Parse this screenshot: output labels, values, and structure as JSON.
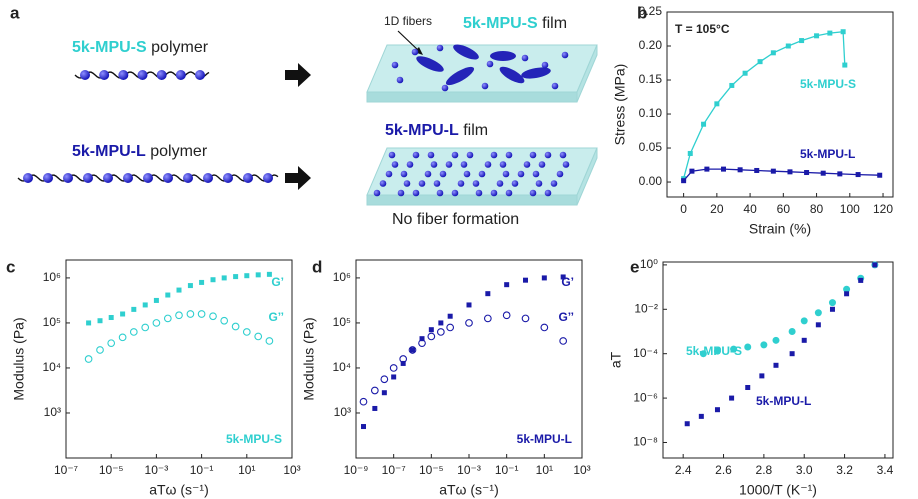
{
  "schematic": {
    "panel": "a",
    "top_polymer": {
      "name": "5k-MPU-S",
      "suffix": "polymer"
    },
    "bottom_polymer": {
      "name": "5k-MPU-L",
      "suffix": "polymer"
    },
    "top_film": {
      "name": "5k-MPU-S",
      "suffix": "film",
      "callout": "1D fibers"
    },
    "bottom_film": {
      "name": "5k-MPU-L",
      "suffix": "film",
      "caption": "No fiber formation"
    }
  },
  "chart_data": [
    {
      "type": "line",
      "panel": "b",
      "annotation": "T = 105°C",
      "xlabel": "Strain (%)",
      "ylabel": "Stress (MPa)",
      "xlim": [
        -10,
        126
      ],
      "ylim": [
        -0.022,
        0.25
      ],
      "xticks": [
        0,
        20,
        40,
        60,
        80,
        100,
        120
      ],
      "yticks": [
        {
          "value": 0,
          "label": "0.00"
        },
        0.05,
        {
          "value": 0.1,
          "label": "0.10"
        },
        0.15,
        {
          "value": 0.2,
          "label": "0.20"
        },
        0.25
      ],
      "series": [
        {
          "name": "5k-MPU-S",
          "color": "#2fcfcf",
          "marker": "square",
          "x": [
            0,
            4,
            12,
            20,
            29,
            37,
            46,
            54,
            63,
            71,
            80,
            88,
            96,
            97
          ],
          "values": [
            0.005,
            0.042,
            0.085,
            0.115,
            0.142,
            0.16,
            0.177,
            0.19,
            0.2,
            0.208,
            0.215,
            0.219,
            0.221,
            0.172
          ]
        },
        {
          "name": "5k-MPU-L",
          "color": "#1a1aa8",
          "marker": "square",
          "x": [
            0,
            5,
            14,
            24,
            34,
            44,
            54,
            64,
            74,
            84,
            94,
            105,
            118
          ],
          "values": [
            0.002,
            0.016,
            0.019,
            0.019,
            0.018,
            0.017,
            0.016,
            0.015,
            0.014,
            0.013,
            0.012,
            0.011,
            0.01
          ]
        }
      ]
    },
    {
      "type": "scatter",
      "panel": "c",
      "annotation": "5k-MPU-S",
      "annotation_color": "#2fcfcf",
      "xlabel": "aTω (s⁻¹)",
      "ylabel": "Modulus (Pa)",
      "xscale": "log",
      "yscale": "log",
      "xlim": [
        1e-07,
        1000
      ],
      "ylim": [
        100,
        2500000
      ],
      "xticks": [
        {
          "value": 1e-07,
          "label": "10⁻⁷"
        },
        {
          "value": 1e-05,
          "label": "10⁻⁵"
        },
        {
          "value": 0.001,
          "label": "10⁻³"
        },
        {
          "value": 0.1,
          "label": "10⁻¹"
        },
        {
          "value": 10,
          "label": "10¹"
        },
        {
          "value": 1000,
          "label": "10³"
        }
      ],
      "yticks": [
        {
          "value": 1000,
          "label": "10³"
        },
        {
          "value": 10000,
          "label": "10⁴"
        },
        {
          "value": 100000,
          "label": "10⁵"
        },
        {
          "value": 1000000,
          "label": "10⁶"
        }
      ],
      "series": [
        {
          "name": "G’",
          "color": "#2fcfcf",
          "marker": "square",
          "x": [
            1e-06,
            3.2e-06,
            1e-05,
            3.2e-05,
            0.0001,
            0.00032,
            0.001,
            0.0032,
            0.01,
            0.032,
            0.1,
            0.32,
            1,
            3.2,
            10,
            32,
            100
          ],
          "values": [
            100000,
            112000,
            132000,
            158000,
            200000,
            251000,
            316000,
            417000,
            537000,
            676000,
            794000,
            912000,
            1000000,
            1070000,
            1120000,
            1170000,
            1200000
          ]
        },
        {
          "name": "G’’",
          "color": "#2fcfcf",
          "marker": "open-circle",
          "x": [
            1e-06,
            3.2e-06,
            1e-05,
            3.2e-05,
            0.0001,
            0.00032,
            0.001,
            0.0032,
            0.01,
            0.032,
            0.1,
            0.32,
            1,
            3.2,
            10,
            32,
            100
          ],
          "values": [
            15800,
            25100,
            35500,
            47900,
            63100,
            79400,
            100000,
            126000,
            148000,
            158000,
            158000,
            141000,
            112000,
            83200,
            63100,
            50100,
            39800
          ]
        }
      ]
    },
    {
      "type": "scatter",
      "panel": "d",
      "annotation": "5k-MPU-L",
      "annotation_color": "#1a1aa8",
      "xlabel": "aTω (s⁻¹)",
      "ylabel": "Modulus (Pa)",
      "xscale": "log",
      "yscale": "log",
      "xlim": [
        1e-09,
        1000
      ],
      "ylim": [
        100,
        2500000
      ],
      "xticks": [
        {
          "value": 1e-09,
          "label": "10⁻⁹"
        },
        {
          "value": 1e-07,
          "label": "10⁻⁷"
        },
        {
          "value": 1e-05,
          "label": "10⁻⁵"
        },
        {
          "value": 0.001,
          "label": "10⁻³"
        },
        {
          "value": 0.1,
          "label": "10⁻¹"
        },
        {
          "value": 10,
          "label": "10¹"
        },
        {
          "value": 1000,
          "label": "10³"
        }
      ],
      "yticks": [
        {
          "value": 1000,
          "label": "10³"
        },
        {
          "value": 10000,
          "label": "10⁴"
        },
        {
          "value": 100000,
          "label": "10⁵"
        },
        {
          "value": 1000000,
          "label": "10⁶"
        }
      ],
      "series": [
        {
          "name": "G’",
          "color": "#1a1aa8",
          "marker": "square",
          "x": [
            2.5e-09,
            1e-08,
            3.2e-08,
            1e-07,
            3.2e-07,
            1e-06,
            3.2e-06,
            1e-05,
            3.2e-05,
            0.0001,
            0.001,
            0.01,
            0.1,
            1,
            10,
            100
          ],
          "values": [
            500,
            1260,
            2820,
            6310,
            12600,
            25100,
            44700,
            70800,
            100000,
            141000,
            251000,
            447000,
            708000,
            891000,
            1000000,
            1050000
          ]
        },
        {
          "name": "G’’",
          "color": "#1a1aa8",
          "marker": "open-circle",
          "x": [
            2.5e-09,
            1e-08,
            3.2e-08,
            1e-07,
            3.2e-07,
            1e-06,
            3.2e-06,
            1e-05,
            3.2e-05,
            0.0001,
            0.001,
            0.01,
            0.1,
            1,
            10,
            100
          ],
          "values": [
            1780,
            3160,
            5620,
            10000,
            15800,
            25100,
            35500,
            50100,
            63100,
            79400,
            100000,
            126000,
            148000,
            126000,
            79400,
            39800
          ]
        }
      ]
    },
    {
      "type": "scatter",
      "panel": "e",
      "xlabel": "1000/T (K⁻¹)",
      "ylabel": "aT",
      "yscale": "log",
      "xlim": [
        2.3,
        3.44
      ],
      "ylim": [
        2e-09,
        1.35
      ],
      "xticks": [
        2.4,
        2.6,
        2.8,
        {
          "value": 3,
          "label": "3.0"
        },
        3.2,
        3.4
      ],
      "yticks": [
        {
          "value": 1e-08,
          "label": "10⁻⁸"
        },
        {
          "value": 1e-06,
          "label": "10⁻⁶"
        },
        {
          "value": 0.0001,
          "label": "10⁻⁴"
        },
        {
          "value": 0.01,
          "label": "10⁻²"
        },
        {
          "value": 1,
          "label": "10⁰"
        }
      ],
      "series": [
        {
          "name": "5k-MPU-S",
          "color": "#2fcfcf",
          "marker": "circle",
          "x": [
            2.5,
            2.57,
            2.65,
            2.72,
            2.8,
            2.86,
            2.94,
            3.0,
            3.07,
            3.14,
            3.21,
            3.28,
            3.35
          ],
          "values": [
            0.0001,
            0.00013,
            0.00016,
            0.0002,
            0.00025,
            0.0004,
            0.001,
            0.003,
            0.007,
            0.02,
            0.08,
            0.25,
            1
          ]
        },
        {
          "name": "5k-MPU-L",
          "color": "#1a1aa8",
          "marker": "square",
          "x": [
            2.42,
            2.49,
            2.57,
            2.64,
            2.72,
            2.79,
            2.86,
            2.94,
            3.0,
            3.07,
            3.14,
            3.21,
            3.28,
            3.35
          ],
          "values": [
            7e-08,
            1.5e-07,
            3e-07,
            1e-06,
            3e-06,
            1e-05,
            3e-05,
            0.0001,
            0.0004,
            0.002,
            0.01,
            0.05,
            0.2,
            1
          ]
        }
      ]
    }
  ]
}
